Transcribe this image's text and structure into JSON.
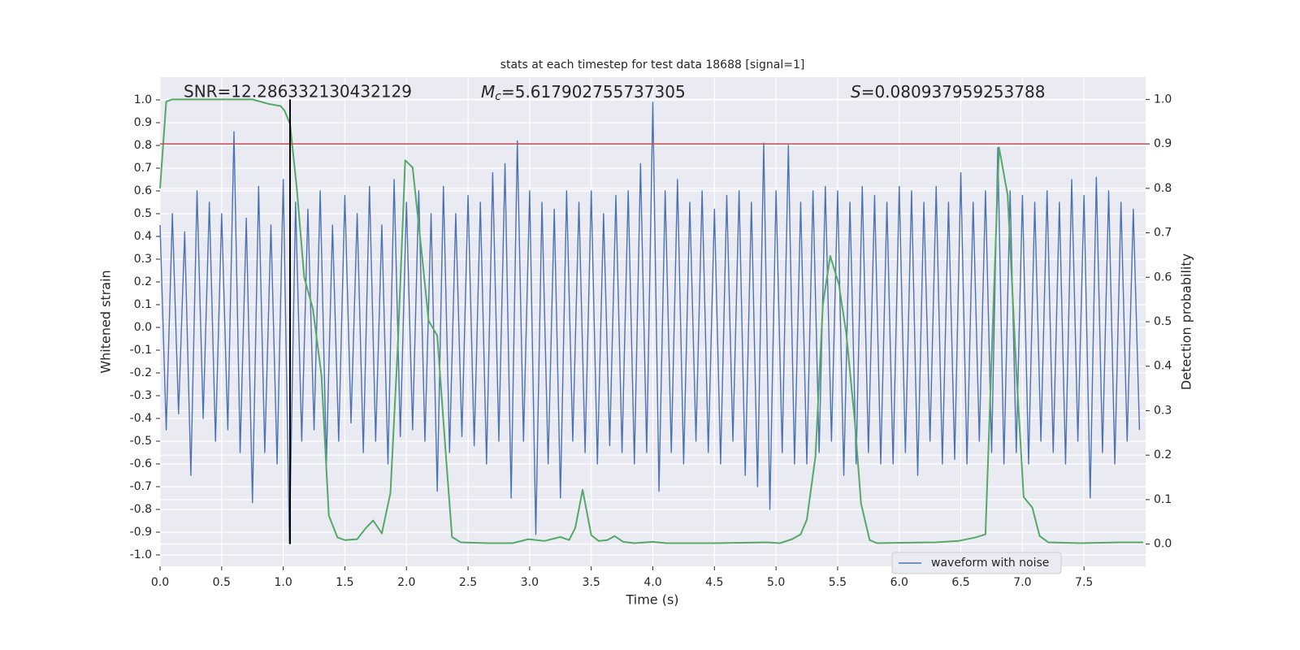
{
  "chart_data": {
    "type": "line",
    "title": "stats at each timestep for test data 18688 [signal=1]",
    "x_label": "Time (s)",
    "y_label": "Whitened strain",
    "y2_label": "Detection probability",
    "annotations": [
      {
        "text": "SNR=12.286332130432129"
      },
      {
        "symbol": "M",
        "subscript": "c",
        "text": "=5.617902755737305"
      },
      {
        "symbol": "S",
        "text": "=0.080937959253788"
      }
    ],
    "xlim": [
      0,
      8
    ],
    "ylim": [
      -1.05,
      1.1
    ],
    "y2lim": [
      -0.05,
      1.05
    ],
    "xticks": [
      {
        "value": 0,
        "label": "0.0"
      },
      0.5,
      {
        "value": 1,
        "label": "1.0"
      },
      1.5,
      {
        "value": 2,
        "label": "2.0"
      },
      2.5,
      {
        "value": 3,
        "label": "3.0"
      },
      3.5,
      {
        "value": 4,
        "label": "4.0"
      },
      4.5,
      {
        "value": 5,
        "label": "5.0"
      },
      5.5,
      {
        "value": 6,
        "label": "6.0"
      },
      6.5,
      {
        "value": 7,
        "label": "7.0"
      },
      7.5
    ],
    "yticks": [
      {
        "value": -1,
        "label": "-1.0"
      },
      -0.9,
      -0.8,
      -0.7,
      -0.6,
      -0.5,
      -0.4,
      -0.3,
      -0.2,
      -0.1,
      {
        "value": 0,
        "label": "0.0"
      },
      0.1,
      0.2,
      0.3,
      0.4,
      0.5,
      0.6,
      0.7,
      0.8,
      0.9,
      {
        "value": 1,
        "label": "1.0"
      }
    ],
    "y2ticks": [
      {
        "value": 0,
        "label": "0.0"
      },
      0.1,
      0.2,
      0.3,
      0.4,
      0.5,
      0.6,
      0.7,
      0.8,
      0.9,
      {
        "value": 1,
        "label": "1.0"
      }
    ],
    "grid": true,
    "legend": "lower right",
    "threshold": {
      "value": 0.9,
      "axis": "y2",
      "color": "#c44e52"
    },
    "vline": {
      "x": 1.055,
      "ymin": 0,
      "ymax": 1,
      "axis": "y2",
      "color": "#000000"
    },
    "series": [
      {
        "name": "waveform with noise",
        "color": "#4c72b0",
        "x": [
          0,
          0.05,
          0.1,
          0.15,
          0.2,
          0.25,
          0.3,
          0.35,
          0.4,
          0.45,
          0.5,
          0.55,
          0.6,
          0.65,
          0.7,
          0.75,
          0.8,
          0.85,
          0.9,
          0.95,
          1,
          1.05,
          1.1,
          1.15,
          1.2,
          1.25,
          1.3,
          1.35,
          1.4,
          1.45,
          1.5,
          1.55,
          1.6,
          1.65,
          1.7,
          1.75,
          1.8,
          1.85,
          1.9,
          1.95,
          2,
          2.05,
          2.1,
          2.15,
          2.2,
          2.25,
          2.3,
          2.35,
          2.4,
          2.45,
          2.5,
          2.55,
          2.6,
          2.65,
          2.7,
          2.75,
          2.8,
          2.85,
          2.9,
          2.95,
          3,
          3.05,
          3.1,
          3.15,
          3.2,
          3.25,
          3.3,
          3.35,
          3.4,
          3.45,
          3.5,
          3.55,
          3.6,
          3.65,
          3.7,
          3.75,
          3.8,
          3.85,
          3.9,
          3.95,
          4,
          4.05,
          4.1,
          4.15,
          4.2,
          4.25,
          4.3,
          4.35,
          4.4,
          4.45,
          4.5,
          4.55,
          4.6,
          4.65,
          4.7,
          4.75,
          4.8,
          4.85,
          4.9,
          4.95,
          5,
          5.05,
          5.1,
          5.15,
          5.2,
          5.25,
          5.3,
          5.35,
          5.4,
          5.45,
          5.5,
          5.55,
          5.6,
          5.65,
          5.7,
          5.75,
          5.8,
          5.85,
          5.9,
          5.95,
          6,
          6.05,
          6.1,
          6.15,
          6.2,
          6.25,
          6.3,
          6.35,
          6.4,
          6.45,
          6.5,
          6.55,
          6.6,
          6.65,
          6.7,
          6.75,
          6.8,
          6.85,
          6.9,
          6.95,
          7,
          7.05,
          7.1,
          7.15,
          7.2,
          7.25,
          7.3,
          7.35,
          7.4,
          7.45,
          7.5,
          7.55,
          7.6,
          7.65,
          7.7,
          7.75,
          7.8,
          7.85,
          7.9,
          7.95
        ],
        "values": [
          0.45,
          -0.45,
          0.5,
          -0.38,
          0.42,
          -0.65,
          0.6,
          -0.4,
          0.55,
          -0.5,
          0.5,
          -0.45,
          0.86,
          -0.55,
          0.48,
          -0.77,
          0.62,
          -0.55,
          0.45,
          -0.6,
          0.65,
          -0.95,
          0.55,
          -0.5,
          0.52,
          -0.45,
          0.6,
          -0.6,
          0.45,
          -0.5,
          0.58,
          -0.42,
          0.5,
          -0.55,
          0.62,
          -0.5,
          0.45,
          -0.6,
          0.65,
          -0.48,
          0.55,
          -0.45,
          0.6,
          -0.5,
          0.5,
          -0.72,
          0.62,
          -0.55,
          0.5,
          -0.48,
          0.58,
          -0.52,
          0.55,
          -0.6,
          0.68,
          -0.5,
          0.72,
          -0.75,
          0.82,
          -0.5,
          0.6,
          -0.91,
          0.55,
          -0.6,
          0.52,
          -0.75,
          0.6,
          -0.5,
          0.55,
          -0.55,
          0.6,
          -0.6,
          0.5,
          -0.52,
          0.58,
          -0.55,
          0.6,
          -0.6,
          0.72,
          -0.55,
          0.99,
          -0.72,
          0.6,
          -0.55,
          0.65,
          -0.6,
          0.55,
          -0.5,
          0.6,
          -0.55,
          0.52,
          -0.6,
          0.58,
          -0.5,
          0.6,
          -0.65,
          0.55,
          -0.7,
          0.81,
          -0.8,
          0.6,
          -0.55,
          0.8,
          -0.6,
          0.55,
          -0.6,
          0.6,
          -0.55,
          0.62,
          -0.5,
          0.6,
          -0.65,
          0.55,
          -0.6,
          0.62,
          -0.55,
          0.58,
          -0.6,
          0.55,
          -0.6,
          0.62,
          -0.55,
          0.6,
          -0.65,
          0.55,
          -0.5,
          0.62,
          -0.6,
          0.55,
          -0.58,
          0.68,
          -0.6,
          0.55,
          -0.5,
          0.6,
          -0.55,
          0.79,
          -0.6,
          0.6,
          -0.55,
          0.58,
          -0.6,
          0.55,
          -0.5,
          0.6,
          -0.55,
          0.55,
          -0.6,
          0.65,
          -0.5,
          0.58,
          -0.75,
          0.66,
          -0.55,
          0.6,
          -0.6,
          0.55,
          -0.5,
          0.52,
          -0.45
        ]
      },
      {
        "color": "#55a868",
        "axis": "y2",
        "x": [
          0,
          0.05,
          0.1,
          0.68,
          0.75,
          0.88,
          0.98,
          1.01,
          1.055,
          1.11,
          1.17,
          1.24,
          1.31,
          1.37,
          1.44,
          1.5,
          1.6,
          1.67,
          1.73,
          1.8,
          1.87,
          1.93,
          1.99,
          2.05,
          2.13,
          2.18,
          2.25,
          2.32,
          2.37,
          2.44,
          2.66,
          2.86,
          2.99,
          3.12,
          3.25,
          3.32,
          3.37,
          3.43,
          3.5,
          3.56,
          3.63,
          3.69,
          3.76,
          3.85,
          4,
          4.11,
          4.51,
          4.93,
          5.03,
          5.13,
          5.2,
          5.25,
          5.32,
          5.38,
          5.44,
          5.51,
          5.57,
          5.64,
          5.69,
          5.76,
          5.82,
          6.29,
          6.48,
          6.62,
          6.7,
          6.75,
          6.81,
          6.88,
          6.95,
          7.01,
          7.08,
          7.14,
          7.21,
          7.47,
          7.8,
          7.98
        ],
        "values": [
          0.8,
          0.995,
          1,
          1,
          1,
          0.99,
          0.985,
          0.975,
          0.945,
          0.8,
          0.6,
          0.53,
          0.38,
          0.064,
          0.015,
          0.009,
          0.011,
          0.036,
          0.053,
          0.024,
          0.115,
          0.447,
          0.863,
          0.847,
          0.639,
          0.502,
          0.469,
          0.2,
          0.016,
          0.004,
          0.002,
          0.002,
          0.011,
          0.007,
          0.016,
          0.009,
          0.036,
          0.122,
          0.02,
          0.007,
          0.009,
          0.018,
          0.005,
          0.002,
          0.005,
          0.002,
          0.002,
          0.004,
          0.002,
          0.011,
          0.022,
          0.055,
          0.197,
          0.538,
          0.648,
          0.584,
          0.474,
          0.274,
          0.091,
          0.009,
          0.002,
          0.004,
          0.007,
          0.015,
          0.022,
          0.42,
          0.892,
          0.785,
          0.392,
          0.106,
          0.082,
          0.018,
          0.004,
          0.002,
          0.004,
          0.004
        ]
      }
    ]
  }
}
